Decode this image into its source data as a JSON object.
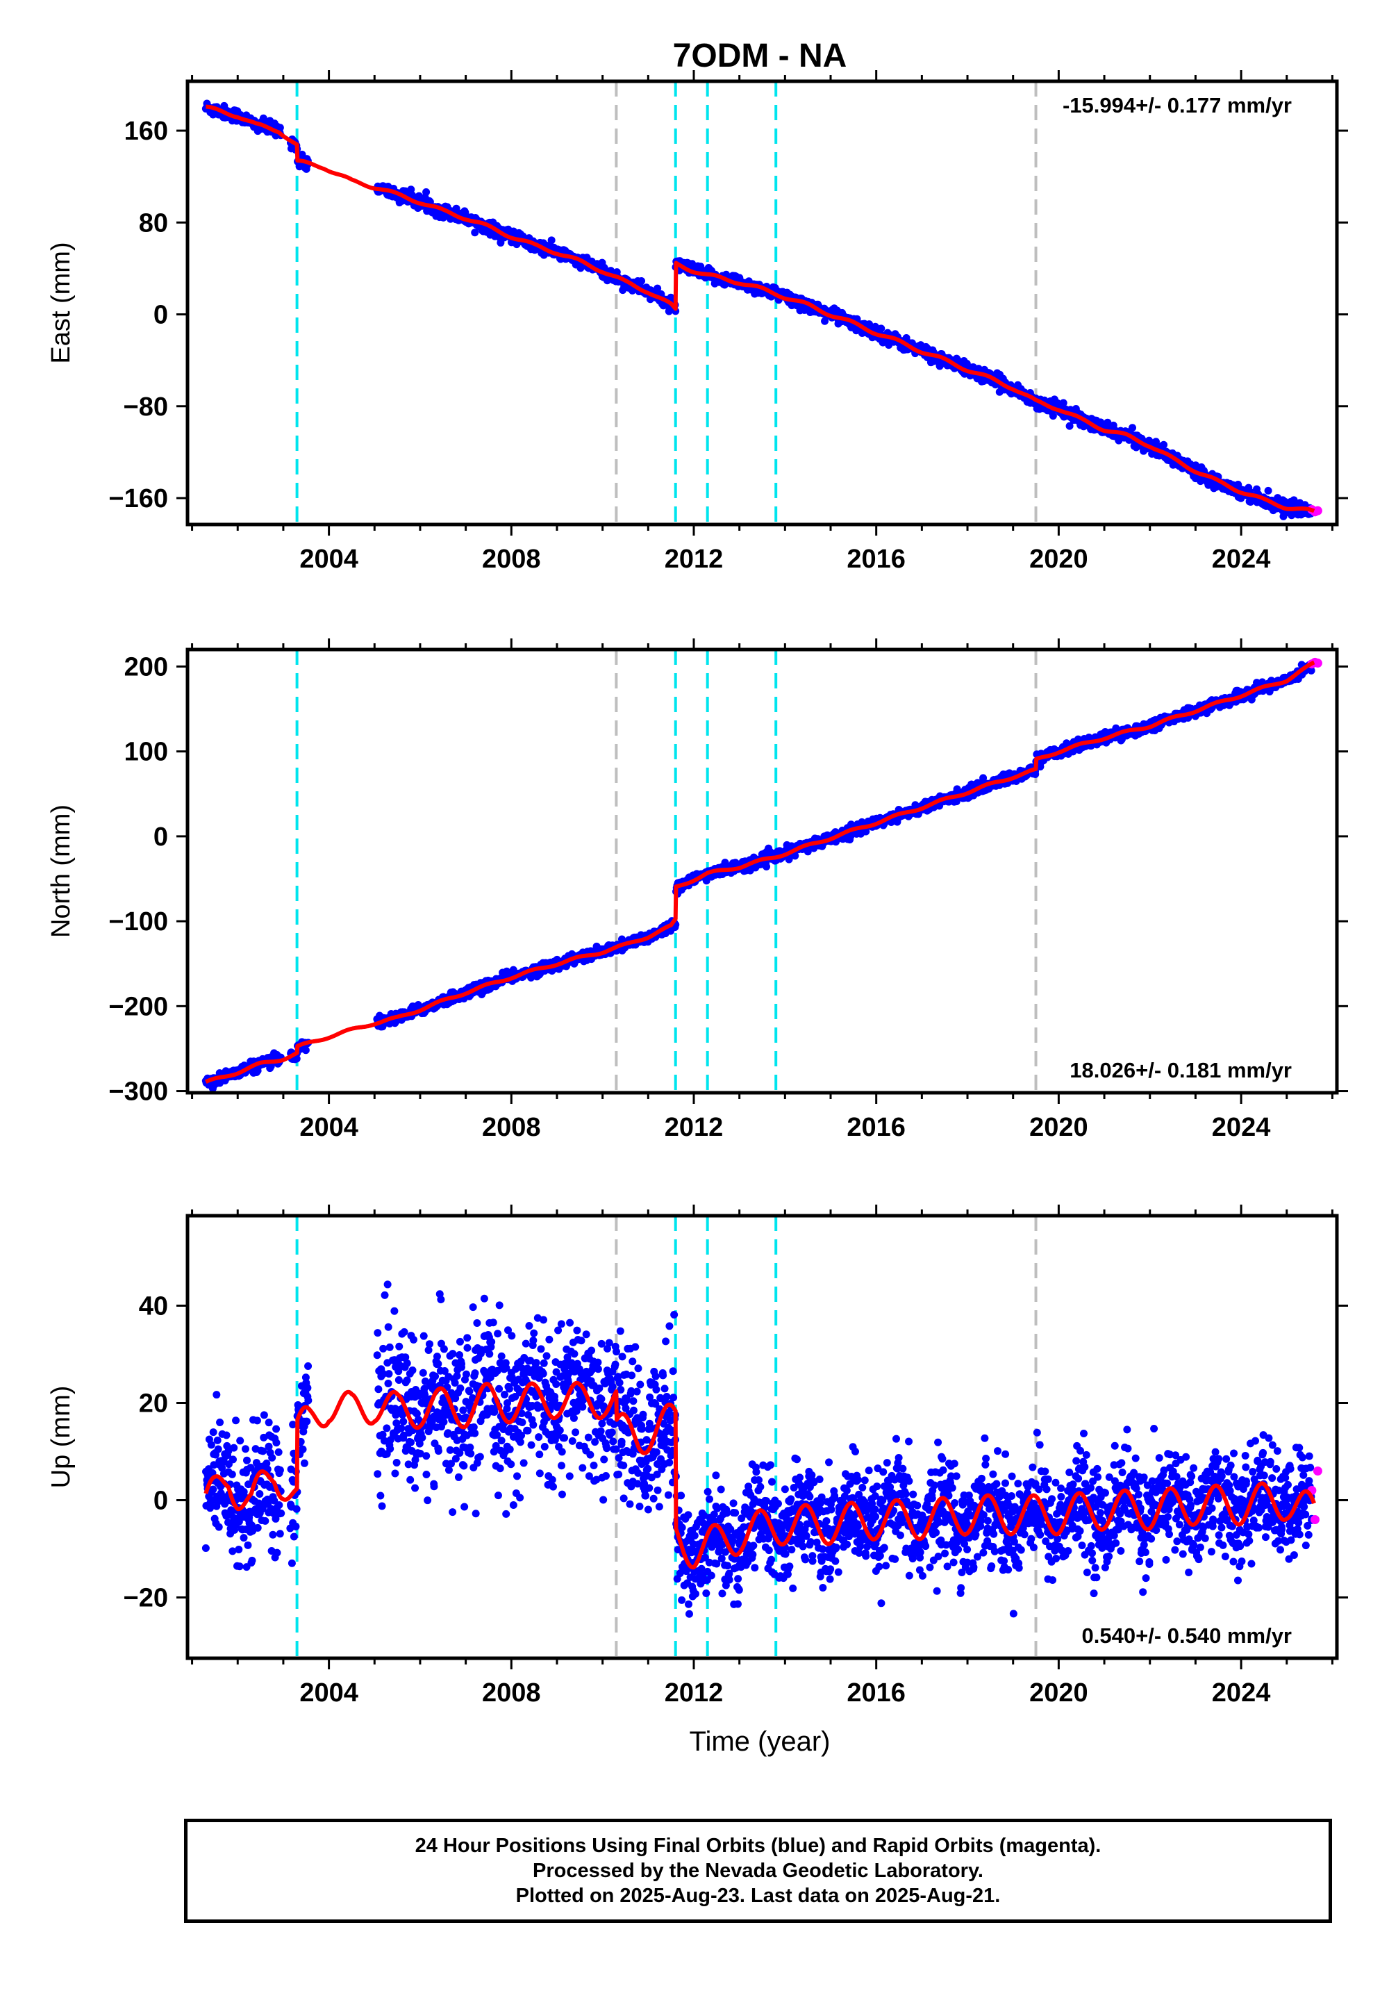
{
  "title": "7ODM - NA",
  "xlabel": "Time (year)",
  "colors": {
    "final_orbits": "#0000ff",
    "rapid_orbits": "#ff00ff",
    "model": "#ff0000",
    "event_cyan": "#00e5ee",
    "event_gray": "#bebebe"
  },
  "events": [
    {
      "year": 2003.3,
      "kind": "cyan"
    },
    {
      "year": 2010.3,
      "kind": "gray"
    },
    {
      "year": 2011.6,
      "kind": "cyan"
    },
    {
      "year": 2012.3,
      "kind": "cyan"
    },
    {
      "year": 2013.8,
      "kind": "cyan"
    },
    {
      "year": 2019.5,
      "kind": "gray"
    }
  ],
  "footer": {
    "line1": "24 Hour Positions Using Final Orbits (blue) and Rapid Orbits (magenta).",
    "line2": "Processed by the Nevada Geodetic Laboratory.",
    "line3": "Plotted on 2025-Aug-23. Last data on 2025-Aug-21."
  },
  "chart_data": [
    {
      "type": "scatter",
      "ylabel": "East (mm)",
      "rate_label": "-15.994+/- 0.177 mm/yr",
      "xlim": [
        2000.9,
        2026.1
      ],
      "ylim": [
        -183,
        203
      ],
      "xticks": [
        2004,
        2008,
        2012,
        2016,
        2020,
        2024
      ],
      "xtick_labels": [
        "2004",
        "2008",
        "2012",
        "2016",
        "2020",
        "2024"
      ],
      "yticks": [
        -160,
        -80,
        0,
        80,
        160
      ],
      "ytick_labels": [
        "−160",
        "−80",
        "0",
        "80",
        "160"
      ],
      "series": [
        {
          "x": [
            2001.3,
            2001.6,
            2002.0,
            2002.4,
            2002.9,
            2003.3,
            2003.31,
            2003.9,
            2004.5,
            2005.1,
            2005.5,
            2006.0,
            2006.5,
            2007.0,
            2007.5,
            2008.0,
            2008.5,
            2009.0,
            2009.5,
            2010.0,
            2010.5,
            2011.0,
            2011.5,
            2011.6,
            2011.61,
            2012.0,
            2012.3,
            2013.0,
            2013.8,
            2014.5,
            2015.0,
            2016.0,
            2017.0,
            2018.0,
            2019.0,
            2019.5,
            2020.0,
            2020.5,
            2021.0,
            2021.5,
            2022.0,
            2022.5,
            2023.0,
            2023.5,
            2024.0,
            2024.5,
            2025.0,
            2025.6
          ],
          "y": [
            180,
            177,
            173,
            165,
            160,
            147,
            133,
            128,
            116,
            110,
            104,
            98,
            90,
            84,
            76,
            68,
            60,
            54,
            46,
            38,
            28,
            20,
            8,
            4,
            44,
            38,
            34,
            28,
            18,
            8,
            0,
            -16,
            -32,
            -48,
            -64,
            -76,
            -82,
            -92,
            -100,
            -106,
            -114,
            -126,
            -136,
            -146,
            -154,
            -162,
            -168,
            -172
          ]
        }
      ],
      "rapid": {
        "x": [
          2025.55,
          2025.62,
          2025.68
        ],
        "y": [
          -170,
          -172,
          -171
        ]
      }
    },
    {
      "type": "scatter",
      "ylabel": "North (mm)",
      "rate_label": "18.026+/- 0.181 mm/yr",
      "xlim": [
        2000.9,
        2026.1
      ],
      "ylim": [
        -302,
        220
      ],
      "xticks": [
        2004,
        2008,
        2012,
        2016,
        2020,
        2024
      ],
      "xtick_labels": [
        "2004",
        "2008",
        "2012",
        "2016",
        "2020",
        "2024"
      ],
      "yticks": [
        -300,
        -200,
        -100,
        0,
        100,
        200
      ],
      "ytick_labels": [
        "−300",
        "−200",
        "−100",
        "0",
        "100",
        "200"
      ],
      "series": [
        {
          "x": [
            2001.3,
            2002.0,
            2002.5,
            2003.0,
            2003.3,
            2003.31,
            2004.0,
            2004.5,
            2005.0,
            2005.5,
            2006.0,
            2007.0,
            2008.0,
            2009.0,
            2010.0,
            2010.5,
            2011.0,
            2011.5,
            2011.6,
            2011.61,
            2012.3,
            2013.0,
            2013.8,
            2015.0,
            2016.0,
            2017.0,
            2018.0,
            2019.0,
            2019.5,
            2019.51,
            2020.0,
            2021.0,
            2022.0,
            2023.0,
            2024.0,
            2025.0,
            2025.6
          ],
          "y": [
            -290,
            -278,
            -268,
            -262,
            -256,
            -248,
            -236,
            -228,
            -220,
            -214,
            -204,
            -184,
            -166,
            -150,
            -136,
            -128,
            -118,
            -106,
            -98,
            -60,
            -44,
            -36,
            -24,
            -2,
            16,
            34,
            52,
            70,
            78,
            90,
            100,
            116,
            130,
            148,
            166,
            184,
            204
          ]
        }
      ],
      "rapid": {
        "x": [
          2025.55,
          2025.62,
          2025.68
        ],
        "y": [
          203,
          205,
          204
        ]
      }
    },
    {
      "type": "scatter",
      "ylabel": "Up (mm)",
      "rate_label": "0.540+/- 0.540 mm/yr",
      "xlim": [
        2000.9,
        2026.1
      ],
      "ylim": [
        -32.5,
        58.5
      ],
      "xticks": [
        2004,
        2008,
        2012,
        2016,
        2020,
        2024
      ],
      "xtick_labels": [
        "2004",
        "2008",
        "2012",
        "2016",
        "2020",
        "2024"
      ],
      "yticks": [
        -20,
        0,
        20,
        40
      ],
      "ytick_labels": [
        "−20",
        "0",
        "20",
        "40"
      ],
      "series": [
        {
          "x": [
            2001.3,
            2001.5,
            2001.8,
            2002.0,
            2002.3,
            2002.5,
            2002.8,
            2003.0,
            2003.3,
            2003.31,
            2003.6,
            2004.0,
            2004.5,
            2005.0,
            2005.5,
            2006.0,
            2006.5,
            2007.0,
            2007.5,
            2008.0,
            2008.5,
            2009.0,
            2009.5,
            2010.0,
            2010.3,
            2010.31,
            2010.8,
            2011.2,
            2011.6,
            2011.61,
            2012.0,
            2012.5,
            2013.0,
            2013.5,
            2014.0,
            2015.0,
            2016.0,
            2017.0,
            2018.0,
            2019.0,
            2020.0,
            2021.0,
            2022.0,
            2023.0,
            2024.0,
            2025.0,
            2025.6
          ],
          "y": [
            -1,
            1,
            5,
            2,
            -1,
            2,
            6,
            4,
            0,
            14,
            16,
            20,
            18,
            20,
            18,
            19,
            19,
            19,
            20,
            20,
            20,
            21,
            20,
            21,
            20,
            14,
            13,
            15,
            16,
            -8,
            -10,
            -9,
            -7,
            -6,
            -5,
            -5,
            -4,
            -4,
            -3,
            -3,
            -3,
            -2,
            -2,
            -1,
            -1,
            0,
            -3
          ]
        }
      ],
      "rapid": {
        "x": [
          2025.55,
          2025.62,
          2025.68
        ],
        "y": [
          2,
          -4,
          6
        ]
      }
    }
  ]
}
